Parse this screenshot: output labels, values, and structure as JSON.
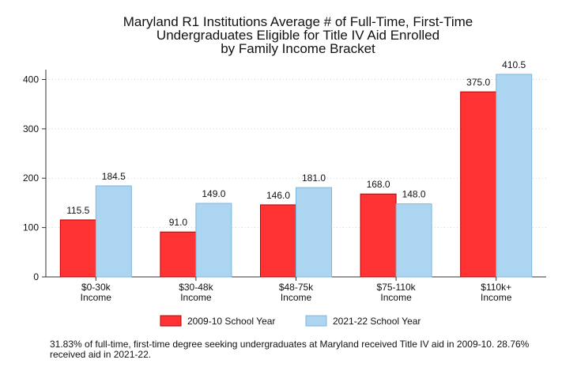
{
  "chart_data": {
    "type": "bar",
    "title": [
      "Maryland R1 Institutions Average # of Full-Time, First-Time",
      "Undergraduates Eligible for Title IV Aid Enrolled",
      "by Family Income Bracket"
    ],
    "categories": [
      [
        "$0-30k",
        "Income"
      ],
      [
        "$30-48k",
        "Income"
      ],
      [
        "$48-75k",
        "Income"
      ],
      [
        "$75-110k",
        "Income"
      ],
      [
        "$110k+",
        "Income"
      ]
    ],
    "series": [
      {
        "name": "2009-10 School Year",
        "values": [
          115.5,
          91.0,
          146.0,
          168.0,
          375.0
        ],
        "color": "#ff3333",
        "edge": "#b80000"
      },
      {
        "name": "2021-22 School Year",
        "values": [
          184.5,
          149.0,
          181.0,
          148.0,
          410.5
        ],
        "color": "#abd5f0",
        "edge": "#7fb6dc"
      }
    ],
    "data_labels": [
      [
        "115.5",
        "91.0",
        "146.0",
        "168.0",
        "375.0"
      ],
      [
        "184.5",
        "149.0",
        "181.0",
        "148.0",
        "410.5"
      ]
    ],
    "yticks": [
      0,
      100,
      200,
      300,
      400
    ],
    "ylim": [
      0,
      420
    ],
    "xlabel": "",
    "ylabel": "",
    "grid": true,
    "legend_position": "bottom"
  },
  "footnote": "31.83% of full-time, first-time degree seeking undergraduates at Maryland received Title IV aid in 2009-10. 28.76% received aid in 2021-22."
}
